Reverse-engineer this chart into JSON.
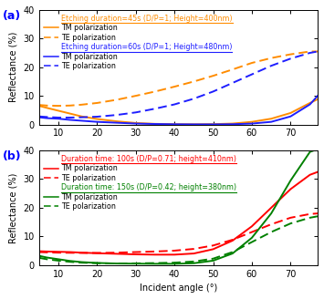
{
  "panel_a": {
    "title_45s": "Etching duration=45s (D/P=1; Height=400nm)",
    "title_60s": "Etching duration=60s (D/P=1; Height=480nm)",
    "color_45s": "#FF8C00",
    "color_60s": "#1E1EFF",
    "angles": [
      5,
      7,
      10,
      13,
      16,
      20,
      25,
      30,
      35,
      40,
      45,
      50,
      55,
      60,
      65,
      70,
      75,
      77
    ],
    "tm_45s": [
      6.5,
      5.8,
      4.8,
      3.8,
      2.8,
      1.9,
      1.1,
      0.5,
      0.2,
      0.08,
      0.05,
      0.1,
      0.3,
      0.9,
      2.0,
      4.0,
      7.5,
      8.8
    ],
    "te_45s": [
      6.8,
      6.6,
      6.5,
      6.6,
      6.9,
      7.5,
      8.6,
      10.0,
      11.5,
      13.2,
      15.0,
      17.0,
      19.2,
      21.5,
      23.2,
      24.5,
      25.5,
      25.5
    ],
    "tm_60s": [
      2.5,
      2.2,
      2.0,
      1.6,
      1.3,
      0.9,
      0.6,
      0.3,
      0.15,
      0.06,
      0.02,
      0.02,
      0.08,
      0.3,
      0.9,
      2.8,
      7.0,
      10.0
    ],
    "te_60s": [
      2.8,
      2.6,
      2.4,
      2.4,
      2.5,
      2.7,
      3.3,
      4.2,
      5.5,
      7.0,
      9.0,
      11.5,
      14.5,
      17.5,
      20.5,
      23.0,
      25.0,
      25.5
    ],
    "ylim": [
      0,
      40
    ],
    "yticks": [
      0,
      10,
      20,
      30,
      40
    ],
    "xticks": [
      10,
      20,
      30,
      40,
      50,
      60,
      70
    ],
    "ylabel": "Reflectance (%)"
  },
  "panel_b": {
    "title_100s": "Duration time: 100s (D/P=0.71; height=410nm)",
    "title_150s": "Duration time: 150s (D/P=0.42; height=380nm)",
    "color_100s": "#FF0000",
    "color_150s": "#008000",
    "angles": [
      5,
      7,
      10,
      13,
      16,
      20,
      25,
      30,
      35,
      40,
      45,
      50,
      55,
      60,
      65,
      70,
      75,
      77
    ],
    "tm_100s": [
      4.8,
      4.7,
      4.6,
      4.5,
      4.3,
      4.1,
      3.9,
      3.7,
      3.6,
      3.6,
      4.0,
      5.5,
      8.5,
      13.5,
      20.0,
      26.5,
      31.5,
      32.5
    ],
    "te_100s": [
      4.5,
      4.4,
      4.3,
      4.25,
      4.2,
      4.2,
      4.3,
      4.5,
      4.7,
      5.0,
      5.6,
      6.8,
      8.8,
      11.5,
      14.2,
      16.5,
      17.8,
      18.0
    ],
    "tm_150s": [
      3.2,
      2.6,
      2.0,
      1.4,
      1.0,
      0.7,
      0.5,
      0.45,
      0.4,
      0.4,
      0.6,
      1.5,
      4.0,
      9.5,
      18.0,
      29.5,
      39.5,
      40.5
    ],
    "te_150s": [
      2.5,
      2.0,
      1.5,
      1.1,
      0.8,
      0.6,
      0.5,
      0.55,
      0.65,
      0.8,
      1.2,
      2.2,
      4.5,
      8.0,
      11.5,
      14.5,
      16.5,
      17.0
    ],
    "ylim": [
      0,
      40
    ],
    "yticks": [
      0,
      10,
      20,
      30,
      40
    ],
    "xticks": [
      10,
      20,
      30,
      40,
      50,
      60,
      70
    ],
    "ylabel": "Reflectance (%)",
    "xlabel": "Incident angle (°)"
  },
  "legend_tm": "TM polarization",
  "legend_te": "TE polarization",
  "fig_width": 3.55,
  "fig_height": 3.28,
  "dpi": 100
}
